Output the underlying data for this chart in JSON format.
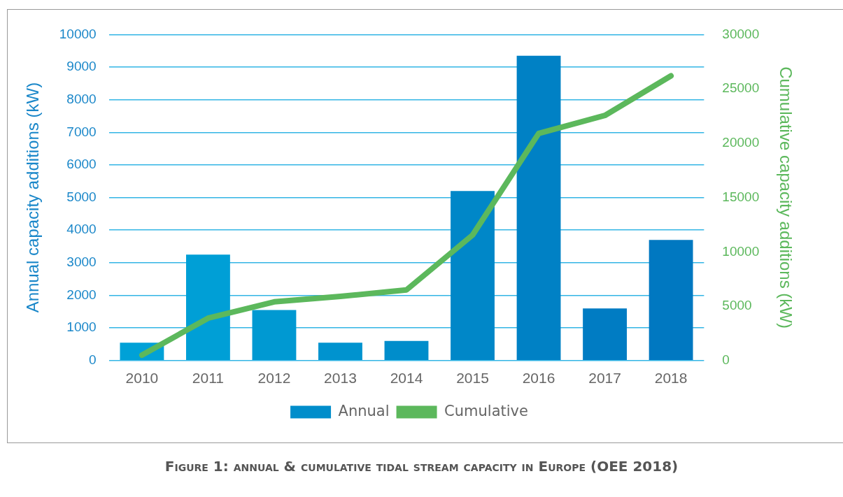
{
  "chart_data": {
    "type": "bar",
    "categories": [
      "2010",
      "2011",
      "2012",
      "2013",
      "2014",
      "2015",
      "2016",
      "2017",
      "2018"
    ],
    "series": [
      {
        "name": "Annual",
        "colors": [
          "#00a1d7",
          "#009fd6",
          "#0099d2",
          "#0093cf",
          "#008dcb",
          "#0087c8",
          "#0081c5",
          "#007cc3",
          "#0078c1"
        ],
        "color": "#008dcb",
        "values": [
          550,
          3250,
          1550,
          550,
          600,
          5200,
          9350,
          1600,
          3700
        ]
      },
      {
        "name": "Cumulative",
        "type": "line",
        "axis": "y2",
        "color": "#5cb85c",
        "values": [
          500,
          3900,
          5400,
          5900,
          6500,
          11550,
          20900,
          22550,
          26200
        ]
      }
    ],
    "ylabel": "Annual capacity additions (kW)",
    "y2label": "Cumulative capacity additions (kW)",
    "ylim": [
      0,
      10000
    ],
    "yticks": [
      0,
      1000,
      2000,
      3000,
      4000,
      5000,
      6000,
      7000,
      8000,
      9000,
      10000
    ],
    "y2lim": [
      0,
      30000
    ],
    "y2ticks": [
      0,
      5000,
      10000,
      15000,
      20000,
      25000,
      30000
    ],
    "grid": "y",
    "legend": "bottom",
    "marker": "none",
    "line_style": "solid",
    "annotations": [
      "Figure 1: annual & cumulative tidal stream capacity in Europe (OEE 2018)"
    ]
  }
}
